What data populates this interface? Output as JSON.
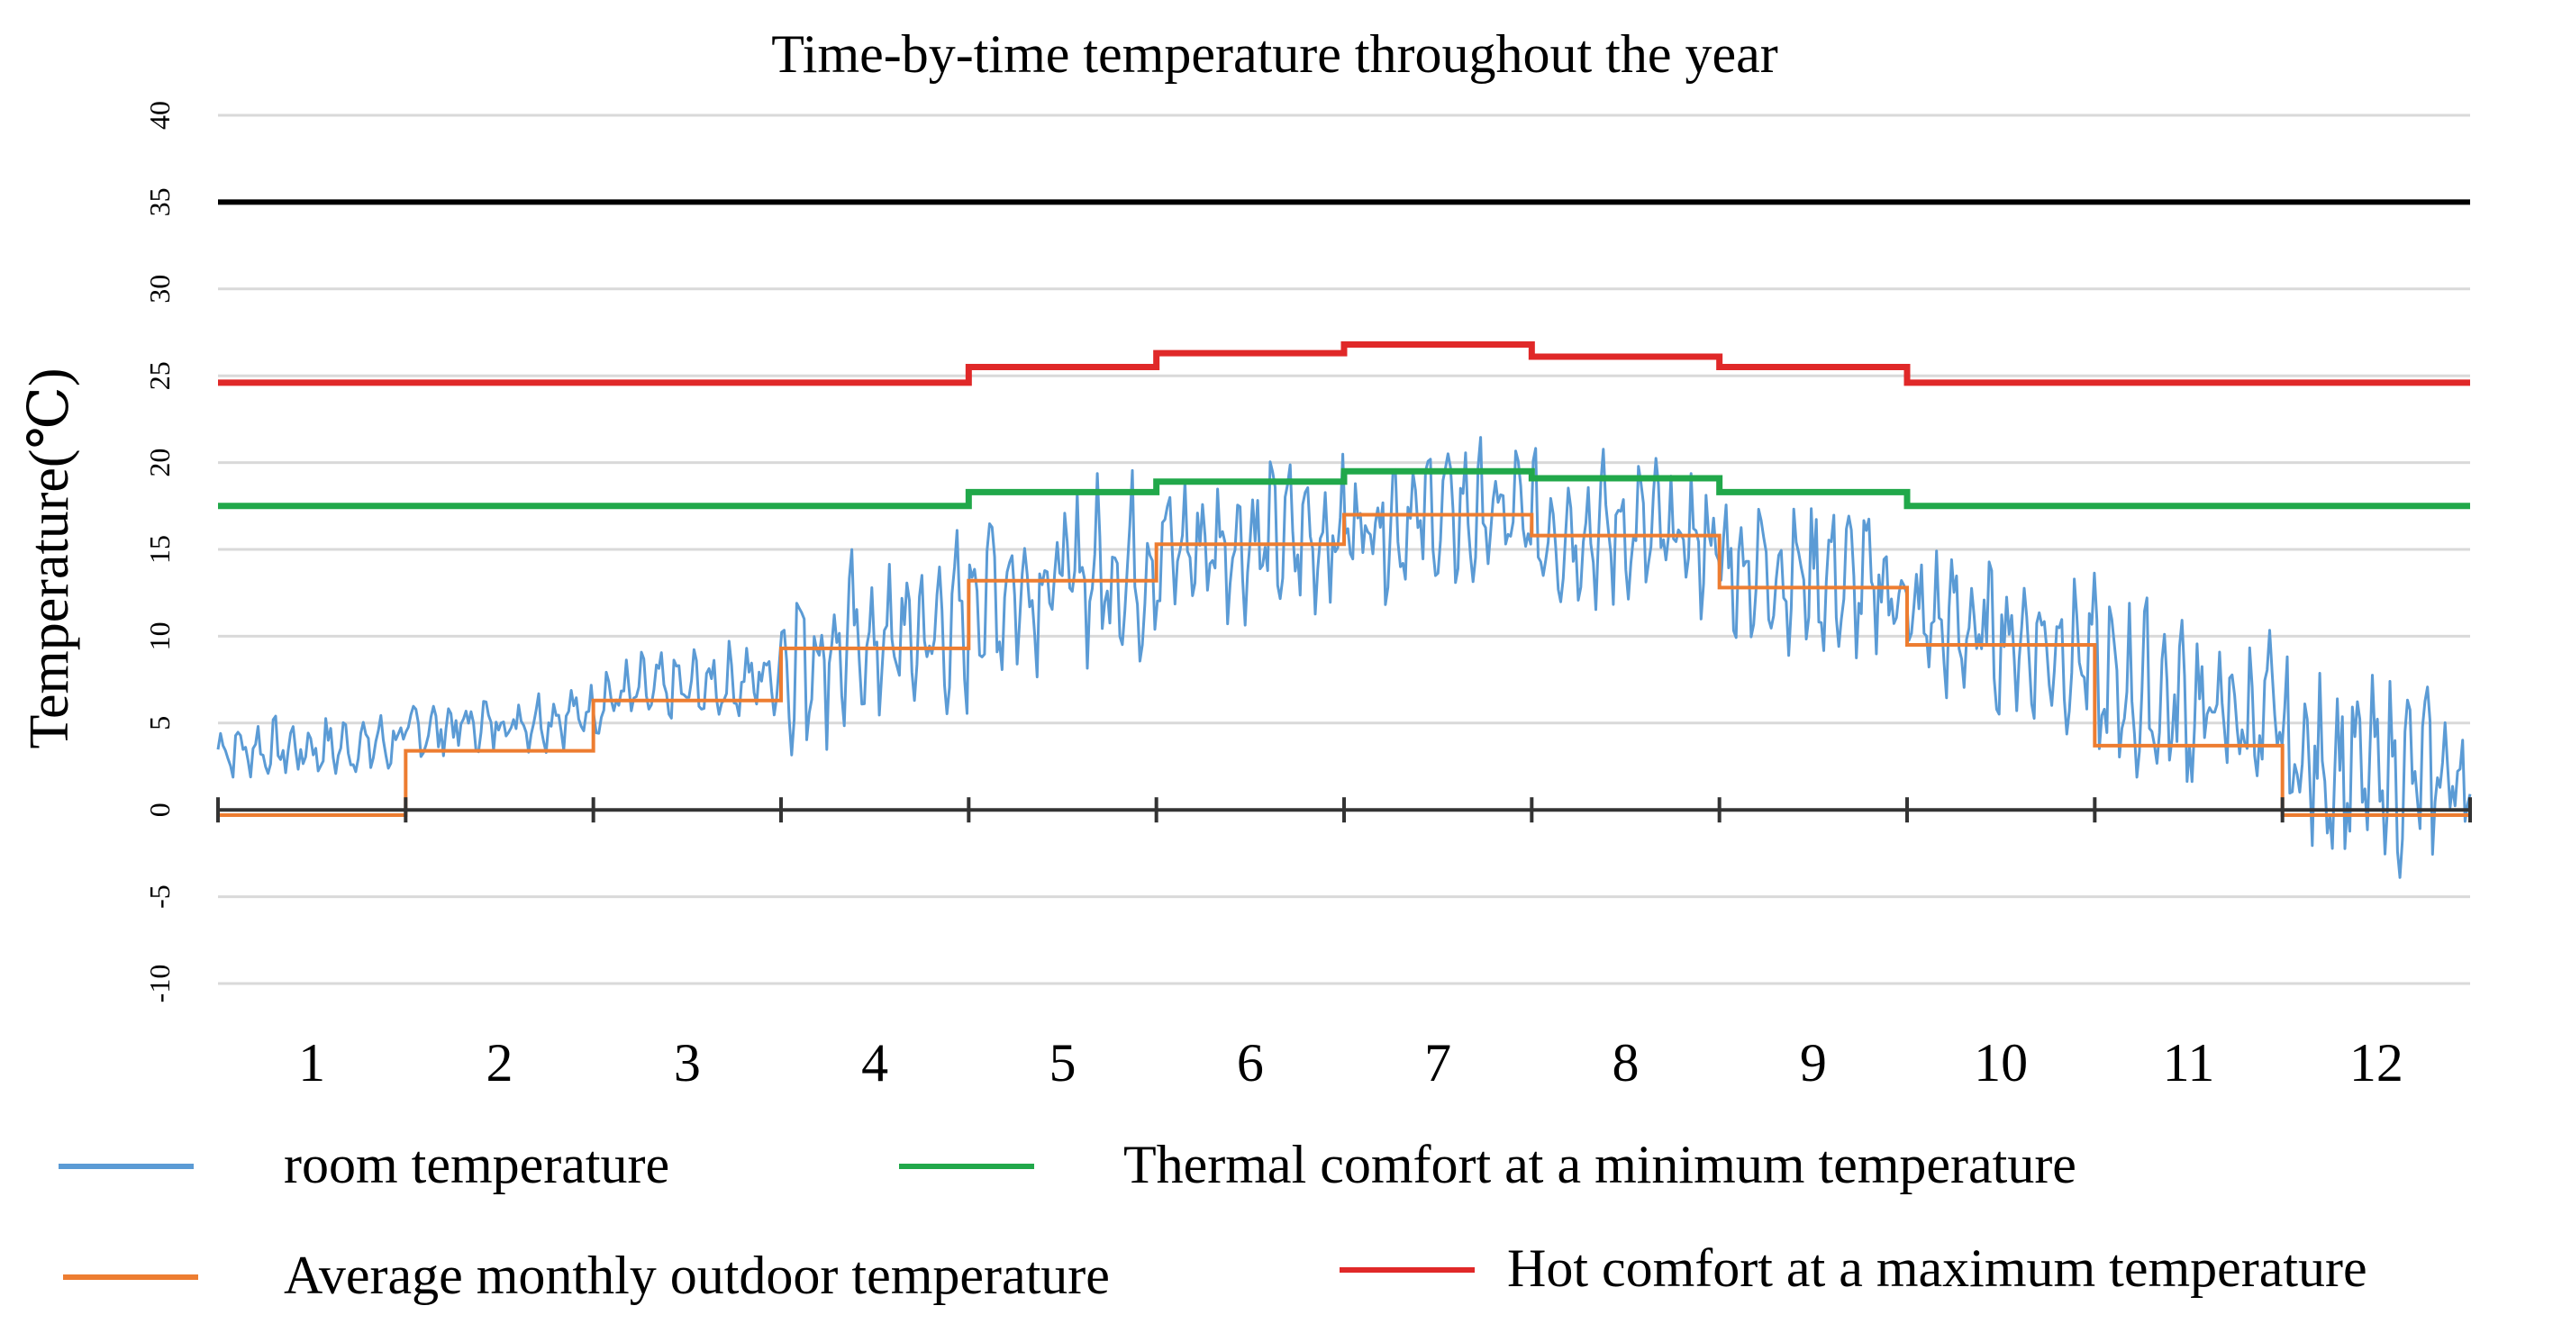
{
  "chart_data": {
    "type": "line",
    "title": "Time-by-time temperature throughout the year",
    "ylabel": "Temperature(℃)",
    "xlabel": "",
    "ylim": [
      -10,
      40
    ],
    "yticks": [
      40,
      35,
      30,
      25,
      20,
      15,
      10,
      5,
      0,
      -5,
      -10
    ],
    "categories": [
      "1",
      "2",
      "3",
      "4",
      "5",
      "6",
      "7",
      "8",
      "9",
      "10",
      "11",
      "12"
    ],
    "grid": true,
    "reference_line": {
      "value": 35,
      "color": "#000000"
    },
    "series": [
      {
        "name": "room temperature",
        "color": "#5B9BD5",
        "kind": "hourly",
        "base_by_month": [
          3.5,
          5.0,
          7.0,
          9.5,
          13.5,
          15.5,
          17.0,
          16.0,
          13.5,
          10.0,
          6.0,
          2.0
        ],
        "daily_swing_by_month": [
          2.0,
          2.0,
          2.5,
          6.0,
          6.0,
          5.0,
          5.0,
          5.0,
          5.0,
          5.0,
          6.0,
          6.0
        ]
      },
      {
        "name": "Thermal comfort at a minimum temperature",
        "color": "#21A84A",
        "values": [
          17.5,
          17.5,
          17.5,
          17.5,
          18.3,
          18.9,
          19.5,
          19.1,
          18.3,
          17.5,
          17.5,
          17.5
        ]
      },
      {
        "name": "Average monthly outdoor temperature",
        "color": "#ED7D31",
        "values": [
          -0.3,
          3.4,
          6.3,
          9.3,
          13.2,
          15.3,
          17.0,
          15.8,
          12.8,
          9.5,
          3.7,
          -0.3
        ]
      },
      {
        "name": "Hot comfort at a maximum temperature",
        "color": "#E02828",
        "values": [
          24.6,
          24.6,
          24.6,
          24.6,
          25.5,
          26.3,
          26.8,
          26.1,
          25.5,
          24.6,
          24.6,
          24.6
        ]
      }
    ],
    "legend": [
      {
        "label": "room temperature",
        "color": "#5B9BD5"
      },
      {
        "label": "Thermal comfort at a minimum temperature",
        "color": "#21A84A"
      },
      {
        "label": "Average monthly outdoor temperature",
        "color": "#ED7D31"
      },
      {
        "label": "Hot comfort at a maximum temperature",
        "color": "#E02828"
      }
    ]
  }
}
